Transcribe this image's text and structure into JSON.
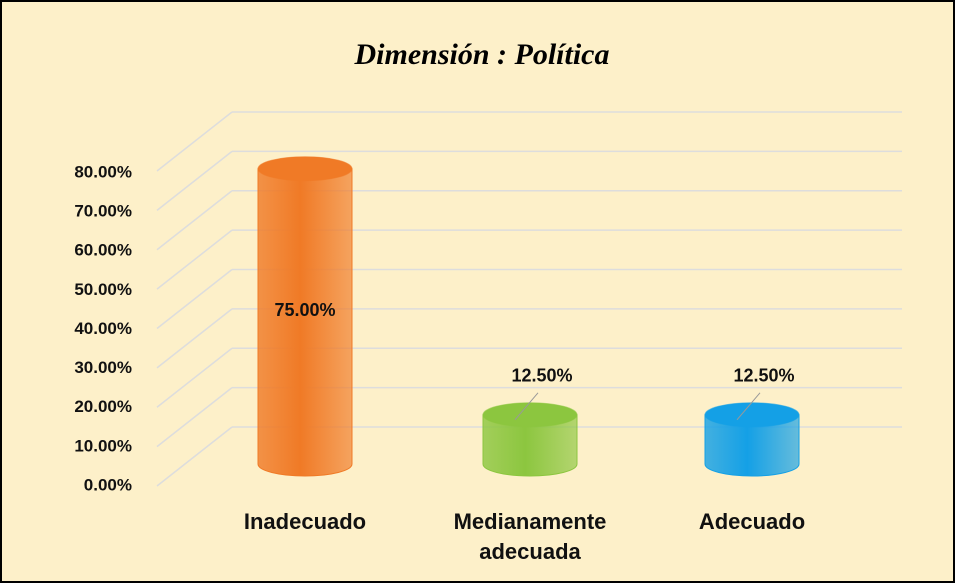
{
  "chart_data": {
    "type": "bar",
    "title": "Dimensión : Política",
    "categories": [
      "Inadecuado",
      "Medianamente adecuada",
      "Adecuado"
    ],
    "values": [
      75,
      12.5,
      12.5
    ],
    "value_labels": [
      "75.00%",
      "12.50%",
      "12.50%"
    ],
    "colors": [
      "#f07a26",
      "#8cc63f",
      "#14a0e6"
    ],
    "ylim": [
      0,
      80
    ],
    "yticks": [
      {
        "value": 0,
        "label": "0.00%"
      },
      {
        "value": 10,
        "label": "10.00%"
      },
      {
        "value": 20,
        "label": "20.00%"
      },
      {
        "value": 30,
        "label": "30.00%"
      },
      {
        "value": 40,
        "label": "40.00%"
      },
      {
        "value": 50,
        "label": "50.00%"
      },
      {
        "value": 60,
        "label": "60.00%"
      },
      {
        "value": 70,
        "label": "70.00%"
      },
      {
        "value": 80,
        "label": "80.00%"
      }
    ],
    "grid": true
  }
}
